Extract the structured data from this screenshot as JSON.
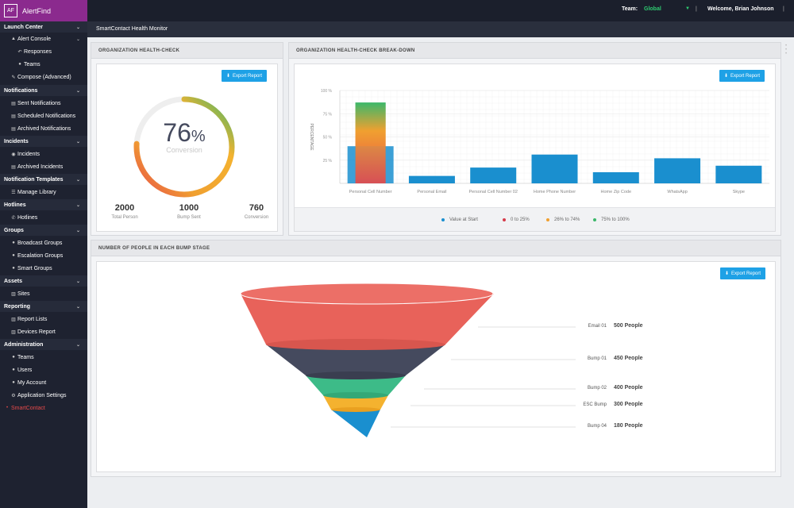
{
  "app": {
    "logo": "AF",
    "name": "AlertFind"
  },
  "topbar": {
    "team_label": "Team:",
    "team_value": "Global",
    "sep1": "|",
    "welcome": "Welcome, Brian Johnson",
    "sep2": "|"
  },
  "sidebar": {
    "launch_center": "Launch Center",
    "alert_console": "Alert Console",
    "responses": "Responses",
    "teams": "Teams",
    "compose": "Compose (Advanced)",
    "notifications": "Notifications",
    "sent_notifications": "Sent Notifications",
    "scheduled_notifications": "Scheduled Notifications",
    "archived_notifications": "Archived Notifications",
    "incidents_section": "Incidents",
    "incidents": "Incidents",
    "archived_incidents": "Archived Incidents",
    "notification_templates": "Notification Templates",
    "manage_library": "Manage Library",
    "hotlines_section": "Hotlines",
    "hotlines": "Hotlines",
    "groups": "Groups",
    "broadcast_groups": "Broadcast Groups",
    "escalation_groups": "Escalation Groups",
    "smart_groups": "Smart Groups",
    "assets": "Assets",
    "sites": "Sites",
    "reporting": "Reporting",
    "report_lists": "Report Lists",
    "devices_report": "Devices Report",
    "administration": "Administration",
    "admin_teams": "Teams",
    "users": "Users",
    "my_account": "My Account",
    "application_settings": "Application Settings",
    "smartcontact": "SmartContact"
  },
  "page": {
    "title": "SmartContact Health Monitor"
  },
  "health_check": {
    "title": "ORGANIZATION HEALTH-CHECK",
    "export": "Export Report",
    "percent": "76",
    "percent_sign": "%",
    "conversion_label": "Conversion",
    "conversion_fraction": 0.76,
    "stats": [
      {
        "value": "2000",
        "label": "Total Person"
      },
      {
        "value": "1000",
        "label": "Bump Sent"
      },
      {
        "value": "760",
        "label": "Conversion"
      }
    ]
  },
  "breakdown": {
    "title": "ORGANIZATION HEALTH-CHECK BREAK-DOWN",
    "export": "Export Report",
    "legend": [
      {
        "label": "Value at Start",
        "color": "#1a8fcf"
      },
      {
        "label": "0 to 25%",
        "color": "#d63b4a"
      },
      {
        "label": "26% to 74%",
        "color": "#f0a030"
      },
      {
        "label": "75% to 100%",
        "color": "#3cb86a"
      }
    ]
  },
  "chart_data": {
    "type": "bar",
    "ylabel": "PERCENTAGE",
    "ylim": [
      0,
      100
    ],
    "yticks": [
      "100 %",
      "75 %",
      "50 %",
      "25 %"
    ],
    "categories": [
      "Personal Cell Number",
      "Personal Email",
      "Personal Cell Number 02",
      "Home Phone Number",
      "Home Zip Code",
      "WhatsApp",
      "Skype"
    ],
    "series": [
      {
        "name": "Value at Start",
        "values": [
          40,
          8,
          17,
          31,
          12,
          27,
          19
        ]
      }
    ],
    "gradient_overlay": {
      "category": "Personal Cell Number",
      "value": 87
    }
  },
  "funnel": {
    "title": "NUMBER OF PEOPLE IN EACH BUMP STAGE",
    "export": "Export Report",
    "stages": [
      {
        "label": "Email 01",
        "value": "500 People",
        "color": "#e8625a"
      },
      {
        "label": "Bump 01",
        "value": "450 People",
        "color": "#454a5e"
      },
      {
        "label": "Bump 02",
        "value": "400 People",
        "color": "#3dbb88"
      },
      {
        "label": "ESC Bump",
        "value": "300 People",
        "color": "#f4b22f"
      },
      {
        "label": "Bump 04",
        "value": "180 People",
        "color": "#1a8fcf"
      }
    ]
  }
}
